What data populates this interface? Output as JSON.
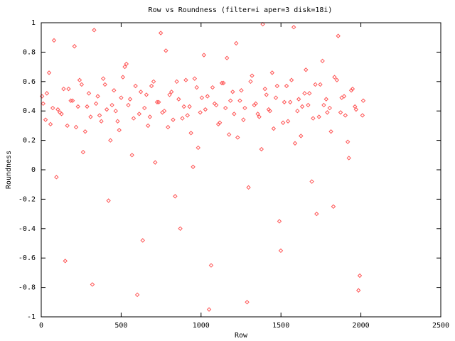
{
  "chart_data": {
    "type": "scatter",
    "title": "Row vs Roundness (filter=i aper=3 disk=18i)",
    "x_label": "Row",
    "y_label": "Roundness",
    "color": "#ff5555",
    "xlim": [
      0,
      2500
    ],
    "xticks": [
      0,
      500,
      1000,
      1500,
      2000,
      2500
    ],
    "ylim": [
      -1,
      1
    ],
    "yticks": [
      -1,
      -0.8,
      -0.6,
      -0.4,
      -0.2,
      0,
      0.2,
      0.4,
      0.6,
      0.8,
      1
    ],
    "x": [
      12,
      35,
      58,
      80,
      104,
      127,
      150,
      171,
      196,
      218,
      240,
      262,
      287,
      309,
      331,
      354,
      376,
      399,
      421,
      443,
      466,
      488,
      511,
      533,
      556,
      578,
      601,
      623,
      646,
      668,
      690,
      713,
      735,
      758,
      780,
      803,
      825,
      848,
      870,
      893,
      915,
      937,
      960,
      982,
      1005,
      1027,
      1050,
      1072,
      1095,
      1117,
      1140,
      1162,
      1184,
      1207,
      1229,
      1252,
      1274,
      1297,
      1319,
      1342,
      1364,
      1386,
      1409,
      1431,
      1454,
      1476,
      1499,
      1521,
      1544,
      1566,
      1588,
      1611,
      1633,
      1656,
      1678,
      1701,
      1723,
      1746,
      1768,
      1790,
      1813,
      1835,
      1858,
      1880,
      1903,
      1925,
      1948,
      1970,
      1993,
      2015,
      5,
      27,
      49,
      72,
      95,
      117,
      140,
      163,
      185,
      208,
      230,
      253,
      275,
      298,
      320,
      343,
      365,
      388,
      410,
      433,
      455,
      478,
      500,
      523,
      545,
      568,
      590,
      613,
      635,
      658,
      680,
      703,
      725,
      748,
      770,
      793,
      815,
      838,
      860,
      883,
      905,
      928,
      950,
      973,
      995,
      1018,
      1040,
      1063,
      1085,
      1108,
      1130,
      1153,
      1175,
      1198,
      1220,
      1243,
      1265,
      1288,
      1310,
      1333,
      1355,
      1378,
      1400,
      1423,
      1445,
      1468,
      1490,
      1513,
      1535,
      1558,
      1580,
      1603,
      1625,
      1648,
      1670,
      1693,
      1715,
      1738,
      1760,
      1783,
      1805,
      1828,
      1850,
      1873,
      1895,
      1918,
      1940,
      1963,
      1985,
      2010
    ],
    "y": [
      0.45,
      0.52,
      0.31,
      0.88,
      0.41,
      0.38,
      -0.62,
      0.55,
      0.47,
      0.29,
      0.61,
      0.12,
      0.43,
      0.36,
      0.95,
      0.5,
      0.33,
      0.58,
      -0.21,
      0.44,
      0.4,
      0.27,
      0.63,
      0.72,
      0.48,
      0.35,
      -0.85,
      0.53,
      0.42,
      0.3,
      0.57,
      0.05,
      0.46,
      0.39,
      0.81,
      0.51,
      0.34,
      0.6,
      -0.4,
      0.43,
      0.37,
      0.25,
      0.62,
      0.15,
      0.49,
      0.41,
      -0.95,
      0.56,
      0.44,
      0.32,
      0.59,
      0.76,
      0.47,
      0.38,
      0.22,
      0.54,
      0.42,
      -0.12,
      0.64,
      0.45,
      0.36,
      0.99,
      0.51,
      0.4,
      0.28,
      0.57,
      -0.55,
      0.46,
      0.33,
      0.61,
      0.18,
      0.48,
      0.43,
      0.68,
      0.52,
      0.35,
      -0.3,
      0.58,
      0.44,
      0.39,
      0.26,
      0.63,
      0.91,
      0.49,
      0.37,
      0.08,
      0.55,
      0.41,
      -0.72,
      0.47,
      0.5,
      0.34,
      0.66,
      0.42,
      -0.05,
      0.39,
      0.55,
      0.3,
      0.47,
      0.84,
      0.43,
      0.58,
      0.26,
      0.52,
      -0.78,
      0.45,
      0.37,
      0.62,
      0.41,
      0.2,
      0.54,
      0.33,
      0.49,
      0.7,
      0.44,
      0.1,
      0.57,
      0.38,
      -0.48,
      0.51,
      0.36,
      0.6,
      0.46,
      0.93,
      0.4,
      0.29,
      0.53,
      -0.18,
      0.48,
      0.35,
      0.61,
      0.43,
      0.02,
      0.56,
      0.39,
      0.78,
      0.5,
      -0.65,
      0.45,
      0.31,
      0.59,
      0.42,
      0.24,
      0.53,
      0.86,
      0.47,
      0.34,
      -0.9,
      0.6,
      0.44,
      0.38,
      0.14,
      0.55,
      0.41,
      0.66,
      0.49,
      -0.35,
      0.32,
      0.57,
      0.46,
      0.97,
      0.4,
      0.23,
      0.52,
      0.44,
      -0.08,
      0.58,
      0.36,
      0.74,
      0.48,
      0.42,
      -0.25,
      0.61,
      0.39,
      0.5,
      0.19,
      0.54,
      0.43,
      -0.82,
      0.37
    ]
  }
}
